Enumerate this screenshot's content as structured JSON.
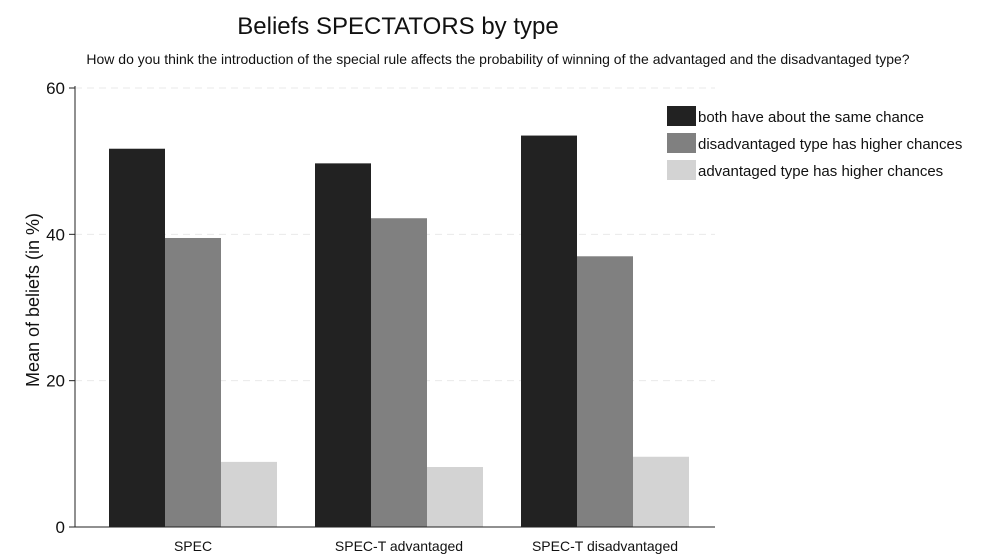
{
  "chart_data": {
    "type": "bar",
    "title": "Beliefs SPECTATORS by type",
    "subtitle": "How do you think the introduction of the special rule affects the probability of winning of the advantaged and the disadvantaged type?",
    "xlabel": "",
    "ylabel": "Mean of beliefs (in %)",
    "ylim": [
      0,
      60
    ],
    "yticks": [
      0,
      20,
      40,
      60
    ],
    "grid": true,
    "legend_position": "top-right",
    "categories": [
      "SPEC",
      "SPEC-T advantaged",
      "SPEC-T disadvantaged"
    ],
    "series": [
      {
        "name": "both have about the same chance",
        "color": "#222222",
        "values": [
          51.7,
          49.7,
          53.5
        ]
      },
      {
        "name": "disadvantaged type has higher chances",
        "color": "#808080",
        "values": [
          39.5,
          42.2,
          37.0
        ]
      },
      {
        "name": "advantaged type has higher chances",
        "color": "#d3d3d3",
        "values": [
          8.9,
          8.2,
          9.6
        ]
      }
    ]
  }
}
